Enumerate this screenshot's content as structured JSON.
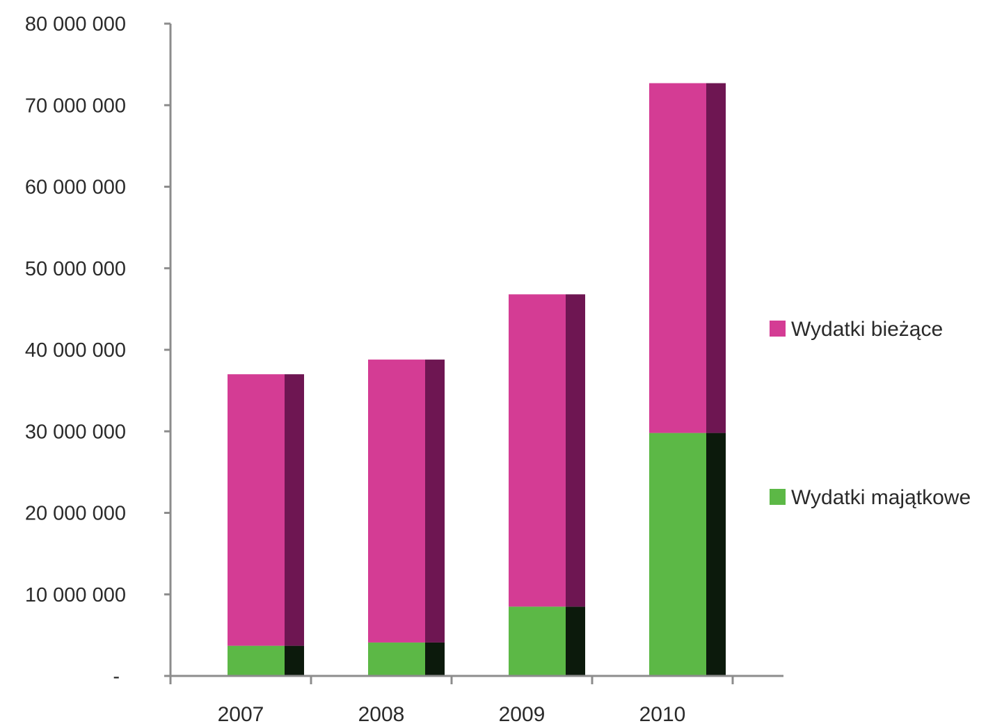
{
  "chart_data": {
    "type": "bar",
    "stacked": true,
    "categories": [
      "2007",
      "2008",
      "2009",
      "2010"
    ],
    "series": [
      {
        "name": "Wydatki majątkowe",
        "color": "#5cb846",
        "shade_color": "#0c1a0c",
        "values": [
          3700000,
          4100000,
          8500000,
          29800000
        ]
      },
      {
        "name": "Wydatki bieżące",
        "color": "#d43c94",
        "shade_color": "#6e1652",
        "values": [
          33300000,
          34700000,
          38300000,
          42900000
        ]
      }
    ],
    "y_ticks": [
      0,
      10000000,
      20000000,
      30000000,
      40000000,
      50000000,
      60000000,
      70000000,
      80000000
    ],
    "y_tick_labels": [
      "-",
      "10 000 000",
      "20 000 000",
      "30 000 000",
      "40 000 000",
      "50 000 000",
      "60 000 000",
      "70 000 000",
      "80 000 000"
    ],
    "ylim": [
      0,
      80000000
    ],
    "grid": false,
    "legend": {
      "position": "right",
      "order": [
        "Wydatki bieżące",
        "Wydatki majątkowe"
      ]
    },
    "title": "",
    "xlabel": "",
    "ylabel": ""
  }
}
